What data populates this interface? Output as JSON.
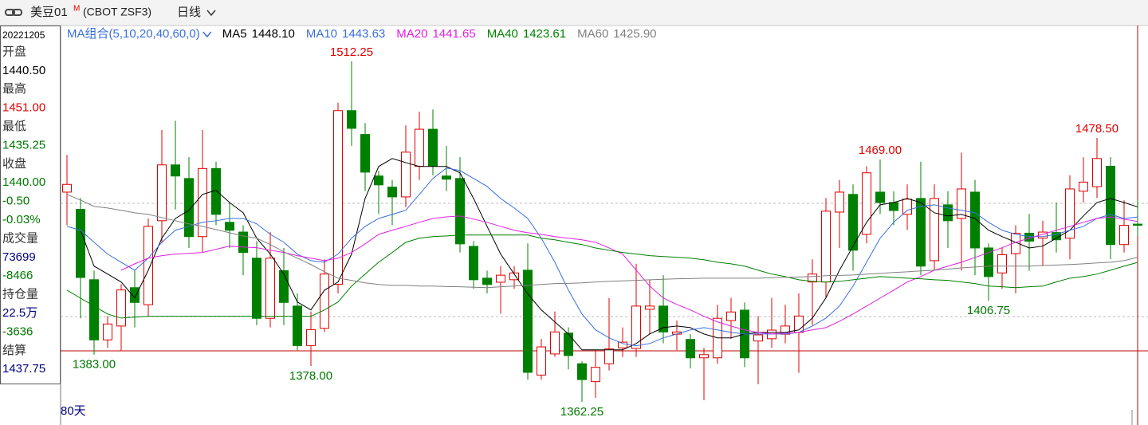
{
  "header": {
    "title": "美豆01",
    "badge": "M",
    "code": "(CBOT ZSF3)",
    "period": "日线"
  },
  "side_panel": [
    "20221205",
    "开盘",
    "1440.50",
    "最高",
    "1451.00",
    "最低",
    "1435.25",
    "收盘",
    "1440.00",
    "-0.50",
    "-0.03%",
    "成交量",
    "73699",
    "-8466",
    "持仓量",
    "22.5万",
    "-3636",
    "结算",
    "1437.75"
  ],
  "side_panel_colors": [
    "#000000",
    "#333333",
    "#000000",
    "#333333",
    "#e00000",
    "#333333",
    "#007700",
    "#333333",
    "#007700",
    "#007700",
    "#007700",
    "#333333",
    "#000080",
    "#007700",
    "#333333",
    "#000080",
    "#007700",
    "#333333",
    "#000080"
  ],
  "chart_data": {
    "type": "candlestick",
    "legend_title": "MA组合(5,10,20,40,60,0)",
    "footer": "80天",
    "ylim": [
      1352,
      1528
    ],
    "up_color": "#e00000",
    "down_color": "#008000",
    "open": [
      1454.6,
      1447,
      1416,
      1389.5,
      1395.6,
      1412.5,
      1405,
      1442,
      1466.6,
      1460.6,
      1435,
      1465,
      1441.3,
      1437,
      1425.5,
      1399,
      1420,
      1404.4,
      1387,
      1394.6,
      1414,
      1490.5,
      1480,
      1461.7,
      1456.8,
      1452.5,
      1466,
      1482.3,
      1461.7,
      1460.6,
      1430.7,
      1416.7,
      1414.9,
      1416,
      1420.2,
      1374,
      1383.3,
      1392.5,
      1379,
      1371.1,
      1379,
      1386,
      1385.7,
      1403,
      1404.4,
      1392,
      1389.7,
      1381.6,
      1381.6,
      1398,
      1402.6,
      1389,
      1390,
      1392,
      1392.8,
      1415,
      1415,
      1445.8,
      1453.6,
      1436,
      1454.6,
      1450,
      1444.8,
      1451.8,
      1424.4,
      1449,
      1443,
      1454.6,
      1430,
      1419,
      1427.5,
      1436.5,
      1434.3,
      1436.8,
      1434.3,
      1455,
      1457,
      1466,
      1431.5,
      1440.5
    ],
    "high": [
      1471,
      1452,
      1420,
      1400,
      1414,
      1420,
      1443,
      1482,
      1486,
      1470,
      1482,
      1468,
      1450,
      1440,
      1433,
      1437,
      1430,
      1410,
      1402,
      1425,
      1494,
      1512.25,
      1485,
      1464,
      1460,
      1484,
      1490,
      1491,
      1475,
      1470,
      1433,
      1420,
      1422,
      1422,
      1432,
      1390,
      1402,
      1395,
      1380,
      1385,
      1408,
      1395,
      1423,
      1416,
      1418,
      1398,
      1392,
      1386,
      1405,
      1408,
      1406,
      1400,
      1408,
      1405,
      1410,
      1425,
      1452,
      1460,
      1458,
      1466,
      1469,
      1455,
      1458,
      1468,
      1458,
      1455,
      1472,
      1460,
      1432,
      1430,
      1440,
      1445,
      1442,
      1450,
      1462,
      1470,
      1478.5,
      1470,
      1451,
      1451
    ],
    "low": [
      1440,
      1399,
      1383,
      1386,
      1384.5,
      1395,
      1400,
      1432,
      1447,
      1430,
      1428,
      1440,
      1430,
      1418,
      1396,
      1395,
      1396,
      1385,
      1378,
      1393,
      1410,
      1475,
      1455,
      1445,
      1440,
      1448,
      1460,
      1462,
      1455,
      1428,
      1412,
      1410,
      1401,
      1412,
      1372,
      1372,
      1382,
      1376.5,
      1362.25,
      1364,
      1376,
      1382,
      1382,
      1392,
      1388,
      1385,
      1377,
      1363,
      1379,
      1390,
      1377.5,
      1370,
      1386,
      1388,
      1375,
      1396,
      1408,
      1430,
      1420,
      1432,
      1445,
      1440,
      1438,
      1418,
      1420,
      1430,
      1420,
      1418,
      1406.75,
      1412,
      1410,
      1420,
      1422,
      1428,
      1425,
      1450,
      1452,
      1425,
      1428,
      1435.25
    ],
    "close": [
      1458,
      1417,
      1389.5,
      1396.5,
      1411.5,
      1406,
      1439.5,
      1466.6,
      1461.7,
      1435,
      1465,
      1444.8,
      1437.8,
      1428,
      1399,
      1425.5,
      1406,
      1387,
      1394,
      1418.5,
      1490.5,
      1482.7,
      1463.4,
      1457.8,
      1452.5,
      1472.2,
      1482.3,
      1466,
      1460.3,
      1431.8,
      1416,
      1413.9,
      1418,
      1419,
      1375.2,
      1386.4,
      1393,
      1382.6,
      1372,
      1377.4,
      1385.5,
      1388.5,
      1404.4,
      1404.4,
      1393,
      1393,
      1381.6,
      1383,
      1399,
      1401.8,
      1381.6,
      1391.7,
      1393.8,
      1395.6,
      1400,
      1418.5,
      1446.2,
      1454.6,
      1429,
      1463.1,
      1450,
      1446.5,
      1451.5,
      1422,
      1451.8,
      1442,
      1456,
      1430,
      1417.4,
      1427,
      1436.5,
      1433,
      1437,
      1433.6,
      1456,
      1459,
      1469.4,
      1431.5,
      1440,
      1440
    ],
    "series": [
      {
        "name": "MA5",
        "color": "#000000",
        "legend_value": "1448.10",
        "values": [
          null,
          1437.8,
          1422,
          1418.5,
          1415,
          1408,
          1420.2,
          1434.3,
          1443,
          1446.6,
          1453.6,
          1455.4,
          1450,
          1445.5,
          1434.3,
          1427.3,
          1418.5,
          1406.2,
          1402.7,
          1411.4,
          1415,
          1427.3,
          1451.8,
          1465.9,
          1469.4,
          1467.6,
          1465.9,
          1465.9,
          1465.9,
          1463.1,
          1451.8,
          1439.5,
          1427.3,
          1418.5,
          1409.7,
          1402.7,
          1397.4,
          1392.1,
          1385.1,
          1385.1,
          1385.1,
          1385.1,
          1387.9,
          1392.1,
          1394.9,
          1395.6,
          1394.9,
          1392.1,
          1390.4,
          1390.4,
          1392.1,
          1392.8,
          1392.8,
          1392.8,
          1393.9,
          1399.1,
          1408,
          1420.2,
          1430.8,
          1441.3,
          1449,
          1450,
          1451.8,
          1450,
          1445.5,
          1444.1,
          1444.8,
          1443,
          1437.8,
          1435,
          1432.5,
          1430,
          1430.8,
          1434.3,
          1437.8,
          1444.1,
          1450,
          1451.8,
          1450,
          1448.1
        ]
      },
      {
        "name": "MA10",
        "color": "#3a6fdc",
        "legend_value": "1443.63",
        "values": [
          1439.5,
          1437.8,
          1432.5,
          1427.3,
          1423.7,
          1420.2,
          1425.5,
          1432.5,
          1437.8,
          1439.5,
          1441.3,
          1442,
          1443,
          1443,
          1440.6,
          1436,
          1432.5,
          1427.3,
          1424.4,
          1423.7,
          1427.3,
          1434.3,
          1439.5,
          1443,
          1444.8,
          1446.6,
          1453.6,
          1460.6,
          1465.2,
          1464.1,
          1460.6,
          1457.1,
          1451.8,
          1447.6,
          1443,
          1434.3,
          1423.7,
          1411.4,
          1400.9,
          1393.9,
          1390.4,
          1387.9,
          1386.9,
          1387.9,
          1390.4,
          1392.1,
          1393.9,
          1394.9,
          1393.9,
          1392.8,
          1392.1,
          1392.1,
          1392.1,
          1392.1,
          1392.8,
          1395.6,
          1399.1,
          1404.4,
          1413.2,
          1423.7,
          1434.3,
          1441.3,
          1446.6,
          1448.3,
          1449,
          1447.6,
          1446.6,
          1445.5,
          1441.3,
          1437.8,
          1436,
          1435,
          1435,
          1436,
          1437.8,
          1439.5,
          1443,
          1444.8,
          1443,
          1443.63
        ]
      },
      {
        "name": "MA20",
        "color": "#e020e0",
        "legend_value": "1441.65",
        "values": [
          null,
          null,
          null,
          null,
          1420.2,
          1423,
          1425.5,
          1426.6,
          1427.3,
          1427.6,
          1428,
          1429.4,
          1430.8,
          1430.4,
          1430.1,
          1429,
          1428,
          1426.6,
          1425.5,
          1424.4,
          1425.5,
          1428,
          1431.8,
          1436,
          1437.8,
          1439.5,
          1441.3,
          1443,
          1443.7,
          1444.1,
          1442.7,
          1441.3,
          1439.5,
          1437.8,
          1436.7,
          1436,
          1435,
          1434.3,
          1433.6,
          1432.5,
          1430,
          1427.3,
          1420.2,
          1413.2,
          1407.9,
          1405.1,
          1402.7,
          1399.9,
          1397.4,
          1395.6,
          1393.9,
          1392.8,
          1392.1,
          1392.5,
          1392.8,
          1393.9,
          1394.9,
          1397.7,
          1400.9,
          1404.4,
          1407.9,
          1411.4,
          1415,
          1417.4,
          1420.2,
          1422,
          1423.7,
          1425.8,
          1428,
          1430.1,
          1432.5,
          1434.3,
          1436,
          1437.8,
          1439.5,
          1441.3,
          1443,
          1443.7,
          1442.7,
          1441.65
        ]
      },
      {
        "name": "MA40",
        "color": "#008000",
        "legend_value": "1423.61",
        "values": [
          1411.4,
          1407.9,
          1404.4,
          1400.9,
          1399.1,
          1399.5,
          1399.9,
          1399.9,
          1399.9,
          1399.9,
          1399.9,
          1399.9,
          1399.9,
          1399.9,
          1399.9,
          1399.9,
          1399.9,
          1399.9,
          1399.9,
          1402.7,
          1406.2,
          1413.2,
          1418.5,
          1423.7,
          1428,
          1432.5,
          1434.3,
          1435,
          1435.3,
          1435.7,
          1435.7,
          1435.7,
          1435.7,
          1435.7,
          1435.7,
          1434.3,
          1433.6,
          1432.5,
          1431.5,
          1430,
          1429,
          1428,
          1427.3,
          1426.6,
          1426.2,
          1425.9,
          1425.5,
          1424.8,
          1423.7,
          1423,
          1422,
          1420.2,
          1418.5,
          1417.4,
          1416,
          1415.3,
          1415,
          1415.3,
          1416,
          1416.7,
          1417.4,
          1417.1,
          1416.7,
          1416.4,
          1416,
          1415.7,
          1415,
          1414.3,
          1413.2,
          1412.9,
          1412.5,
          1412.9,
          1413.2,
          1415,
          1416.7,
          1417.4,
          1418.5,
          1420.2,
          1422,
          1423.61
        ]
      },
      {
        "name": "MA60",
        "color": "#808080",
        "legend_value": "1425.90",
        "values": [
          1453.6,
          1451.1,
          1448.3,
          1447.6,
          1446.6,
          1445.5,
          1444.8,
          1443.4,
          1442,
          1440.6,
          1439.5,
          1438.1,
          1436.7,
          1435.3,
          1434.3,
          1431.5,
          1428.3,
          1425.5,
          1422.7,
          1419.5,
          1416.7,
          1415.7,
          1414.6,
          1413.9,
          1413.5,
          1413.5,
          1413.2,
          1413.2,
          1413,
          1412.9,
          1412.7,
          1412.5,
          1412.9,
          1413.2,
          1413.5,
          1413.9,
          1414.3,
          1414.4,
          1414.6,
          1415,
          1415.3,
          1415.5,
          1415.7,
          1416,
          1416.2,
          1416.4,
          1416.5,
          1416.7,
          1416.7,
          1416.7,
          1416.7,
          1416.7,
          1416.9,
          1417.1,
          1417.2,
          1417.4,
          1417.8,
          1417.9,
          1418.1,
          1418.5,
          1418.8,
          1419.2,
          1419.5,
          1419.9,
          1420.2,
          1420.7,
          1421.2,
          1421.6,
          1422,
          1422,
          1422,
          1422,
          1422.3,
          1422.5,
          1422.7,
          1423,
          1423.4,
          1423.7,
          1424.4,
          1425.9
        ]
      }
    ],
    "annotations": [
      {
        "value": 1512.25,
        "label": "1512.25",
        "color": "#e00000"
      },
      {
        "value": 1383,
        "label": "1383.00",
        "color": "#007700"
      },
      {
        "value": 1378,
        "label": "1378.00",
        "color": "#007700"
      },
      {
        "value": 1362.25,
        "label": "1362.25",
        "color": "#007700"
      },
      {
        "value": 1469,
        "label": "1469.00",
        "color": "#e00000"
      },
      {
        "value": 1478.5,
        "label": "1478.50",
        "color": "#e00000"
      },
      {
        "value": 1406.75,
        "label": "1406.75",
        "color": "#007700"
      }
    ]
  }
}
